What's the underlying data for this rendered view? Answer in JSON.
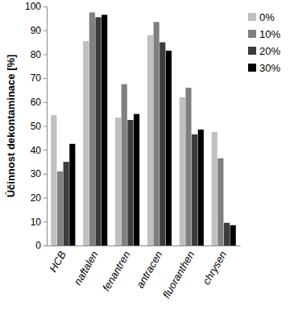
{
  "chart_data": {
    "type": "bar",
    "y_label": "Účinnost dekontaminace [%]",
    "categories": [
      "HCB",
      "naftalen",
      "fenantren",
      "antracen",
      "fluoranthen",
      "chrysen"
    ],
    "series": [
      {
        "name": "0%",
        "color": "#c0c0c0",
        "values": [
          54.5,
          85.5,
          53.5,
          88,
          62,
          47.5
        ]
      },
      {
        "name": "10%",
        "color": "#808080",
        "values": [
          31,
          97.5,
          67.5,
          93.5,
          66,
          36.5
        ]
      },
      {
        "name": "20%",
        "color": "#3c3c3c",
        "values": [
          35,
          95.5,
          52.5,
          85,
          46.5,
          9.5
        ]
      },
      {
        "name": "30%",
        "color": "#000000",
        "values": [
          42.5,
          96.5,
          55,
          81.5,
          48.5,
          8.5
        ]
      }
    ],
    "ylim": [
      0,
      100
    ],
    "yticks": [
      0,
      10,
      20,
      30,
      40,
      50,
      60,
      70,
      80,
      90,
      100
    ],
    "grid": false,
    "legend": "right"
  }
}
